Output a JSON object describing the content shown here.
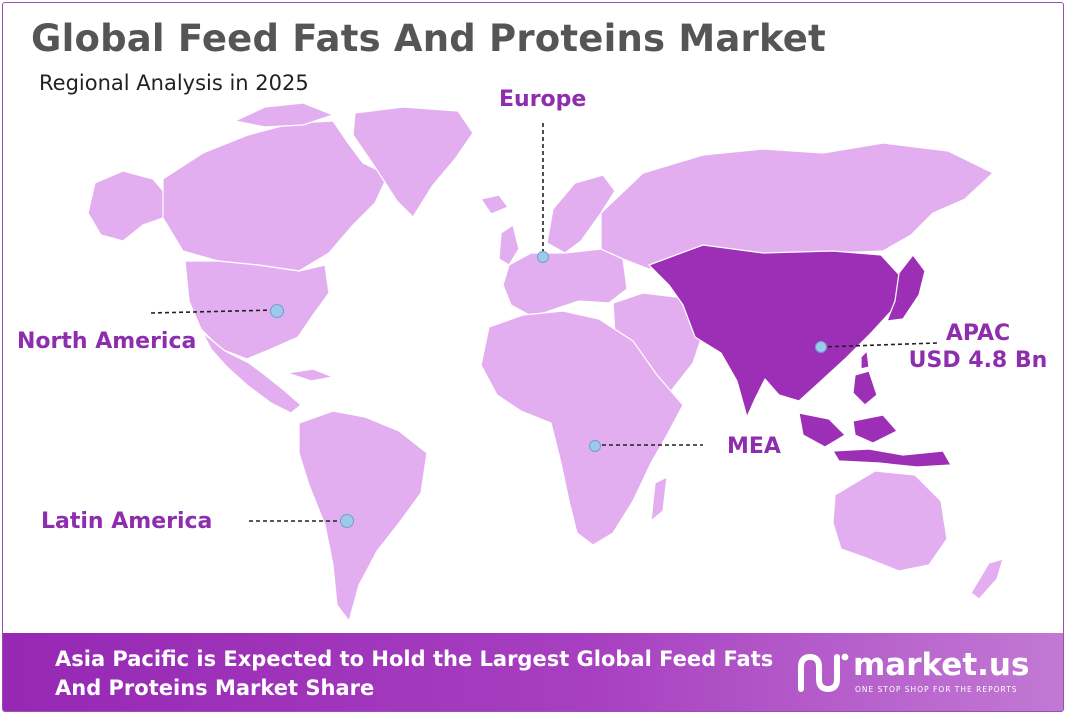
{
  "header": {
    "title": "Global Feed Fats And Proteins Market",
    "subtitle": "Regional Analysis in 2025"
  },
  "regions": [
    {
      "id": "europe",
      "name": "Europe",
      "value": "",
      "highlighted": false
    },
    {
      "id": "north-america",
      "name": "North America",
      "value": "",
      "highlighted": false
    },
    {
      "id": "apac",
      "name": "APAC",
      "value": "USD 4.8 Bn",
      "highlighted": true
    },
    {
      "id": "mea",
      "name": "MEA",
      "value": "",
      "highlighted": false
    },
    {
      "id": "latin-america",
      "name": "Latin America",
      "value": "",
      "highlighted": false
    }
  ],
  "colors": {
    "land": "#e3aef0",
    "highlight": "#9c2fb5",
    "label": "#8e2eae",
    "marker": "#9ec8ec",
    "title": "#555555"
  },
  "footer": {
    "text": "Asia Pacific is Expected to Hold the Largest Global Feed Fats And Proteins Market Share",
    "brand": "market.us",
    "tagline": "ONE STOP SHOP FOR THE REPORTS",
    "logo_icon": "market-us-logo-icon"
  }
}
